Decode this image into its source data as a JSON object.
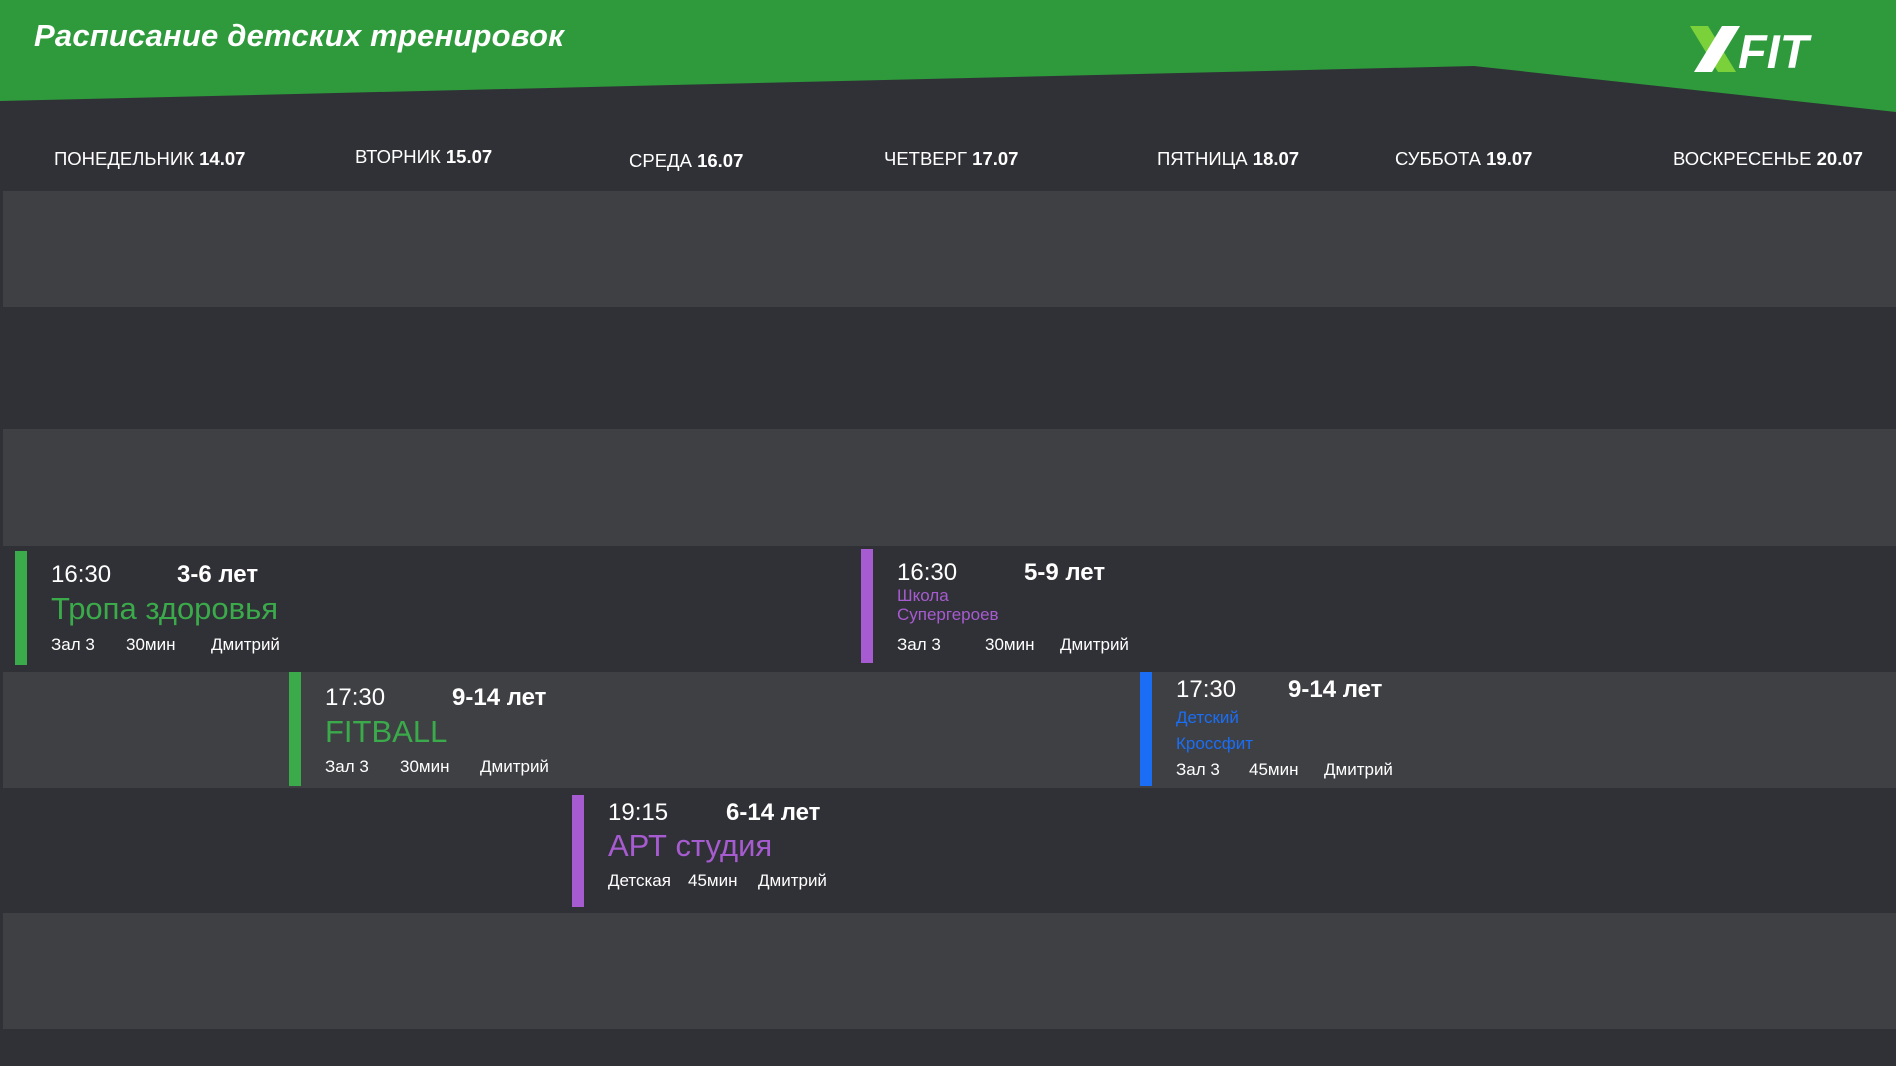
{
  "header": {
    "title": "Расписание детских тренировок",
    "brand_text": "FIT",
    "brand_mark": "X",
    "colors": {
      "header_green": "#2e9a3c",
      "background": "#303136",
      "row_band": "#3f4044",
      "green": "#3aaa4a",
      "purple": "#a75bd0",
      "blue": "#1a6ef5"
    }
  },
  "days": [
    {
      "name": "ПОНЕДЕЛЬНИК",
      "date": "14.07"
    },
    {
      "name": "ВТОРНИК",
      "date": "15.07"
    },
    {
      "name": "СРЕДА",
      "date": "16.07"
    },
    {
      "name": "ЧЕТВЕРГ",
      "date": "17.07"
    },
    {
      "name": "ПЯТНИЦА",
      "date": "18.07"
    },
    {
      "name": "СУББОТА",
      "date": "19.07"
    },
    {
      "name": "ВОСКРЕСЕНЬЕ",
      "date": "20.07"
    }
  ],
  "events": [
    {
      "day": "ПОНЕДЕЛЬНИК",
      "time": "16:30",
      "age": "3-6 лет",
      "name": "Тропа здоровья",
      "name_lines": [
        "Тропа здоровья"
      ],
      "hall": "Зал 3",
      "duration": "30мин",
      "trainer": "Дмитрий",
      "color": "#3aaa4a"
    },
    {
      "day": "ЧЕТВЕРГ",
      "time": "16:30",
      "age": "5-9 лет",
      "name": "Школа Супергероев",
      "name_lines": [
        "Школа",
        "Супергероев"
      ],
      "hall": "Зал 3",
      "duration": "30мин",
      "trainer": "Дмитрий",
      "color": "#a75bd0"
    },
    {
      "day": "ВТОРНИК",
      "time": "17:30",
      "age": "9-14 лет",
      "name": "FITBALL",
      "name_lines": [
        "FITBALL"
      ],
      "hall": "Зал 3",
      "duration": "30мин",
      "trainer": "Дмитрий",
      "color": "#3aaa4a"
    },
    {
      "day": "ПЯТНИЦА",
      "time": "17:30",
      "age": "9-14 лет",
      "name": "Детский Кроссфит",
      "name_lines": [
        "Детский",
        "Кроссфит"
      ],
      "hall": "Зал 3",
      "duration": "45мин",
      "trainer": "Дмитрий",
      "color": "#1a6ef5"
    },
    {
      "day": "СРЕДА",
      "time": "19:15",
      "age": "6-14 лет",
      "name": "АРТ студия",
      "name_lines": [
        "АРТ студия"
      ],
      "hall": "Детская",
      "duration": "45мин",
      "trainer": "Дмитрий",
      "color": "#a75bd0"
    }
  ]
}
